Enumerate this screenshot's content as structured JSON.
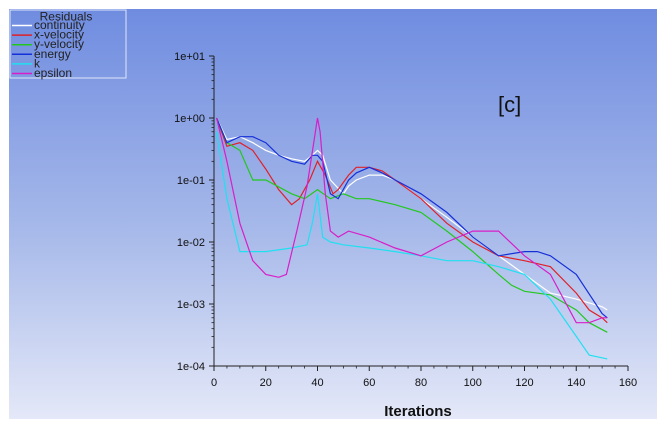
{
  "panel_label": "[c]",
  "legend": {
    "title": "Residuals",
    "items": [
      {
        "label": "continuity",
        "color": "#ffffff"
      },
      {
        "label": "x-velocity",
        "color": "#e0202a"
      },
      {
        "label": "y-velocity",
        "color": "#22c81e"
      },
      {
        "label": "energy",
        "color": "#1630d8"
      },
      {
        "label": "k",
        "color": "#20e0f0"
      },
      {
        "label": "epsilon",
        "color": "#d81ec8"
      }
    ]
  },
  "chart_data": {
    "type": "line",
    "xlabel": "Iterations",
    "ylabel": "",
    "xlim": [
      0,
      160
    ],
    "ylim": [
      0.0001,
      10
    ],
    "yscale": "log",
    "x_ticks": [
      "0",
      "20",
      "40",
      "60",
      "80",
      "100",
      "120",
      "140",
      "160"
    ],
    "y_ticks": [
      "1e-04",
      "1e-03",
      "1e-02",
      "1e-01",
      "1e+00",
      "1e+01"
    ],
    "grid": false,
    "legend_position": "top-left",
    "series": [
      {
        "name": "continuity",
        "color": "#ffffff",
        "points": [
          [
            1,
            1
          ],
          [
            5,
            0.45
          ],
          [
            10,
            0.5
          ],
          [
            15,
            0.4
          ],
          [
            20,
            0.3
          ],
          [
            25,
            0.25
          ],
          [
            30,
            0.22
          ],
          [
            35,
            0.2
          ],
          [
            38,
            0.25
          ],
          [
            40,
            0.3
          ],
          [
            42,
            0.25
          ],
          [
            45,
            0.1
          ],
          [
            50,
            0.06
          ],
          [
            52,
            0.08
          ],
          [
            55,
            0.1
          ],
          [
            60,
            0.12
          ],
          [
            65,
            0.12
          ],
          [
            70,
            0.1
          ],
          [
            80,
            0.05
          ],
          [
            90,
            0.025
          ],
          [
            100,
            0.012
          ],
          [
            110,
            0.006
          ],
          [
            120,
            0.003
          ],
          [
            130,
            0.0015
          ],
          [
            140,
            0.0012
          ],
          [
            150,
            0.0009
          ],
          [
            152,
            0.0008
          ]
        ]
      },
      {
        "name": "x-velocity",
        "color": "#e0202a",
        "points": [
          [
            1,
            1
          ],
          [
            5,
            0.35
          ],
          [
            10,
            0.4
          ],
          [
            15,
            0.3
          ],
          [
            20,
            0.15
          ],
          [
            25,
            0.07
          ],
          [
            30,
            0.04
          ],
          [
            33,
            0.05
          ],
          [
            37,
            0.1
          ],
          [
            40,
            0.2
          ],
          [
            43,
            0.12
          ],
          [
            46,
            0.06
          ],
          [
            48,
            0.07
          ],
          [
            52,
            0.12
          ],
          [
            55,
            0.16
          ],
          [
            60,
            0.16
          ],
          [
            65,
            0.14
          ],
          [
            70,
            0.1
          ],
          [
            80,
            0.05
          ],
          [
            90,
            0.02
          ],
          [
            100,
            0.01
          ],
          [
            110,
            0.006
          ],
          [
            120,
            0.005
          ],
          [
            130,
            0.004
          ],
          [
            140,
            0.0015
          ],
          [
            145,
            0.0008
          ],
          [
            150,
            0.0006
          ],
          [
            152,
            0.0005
          ]
        ]
      },
      {
        "name": "y-velocity",
        "color": "#22c81e",
        "points": [
          [
            1,
            1
          ],
          [
            5,
            0.4
          ],
          [
            10,
            0.3
          ],
          [
            15,
            0.1
          ],
          [
            20,
            0.1
          ],
          [
            30,
            0.06
          ],
          [
            35,
            0.05
          ],
          [
            40,
            0.07
          ],
          [
            45,
            0.05
          ],
          [
            50,
            0.06
          ],
          [
            55,
            0.05
          ],
          [
            60,
            0.05
          ],
          [
            70,
            0.04
          ],
          [
            80,
            0.03
          ],
          [
            90,
            0.015
          ],
          [
            100,
            0.007
          ],
          [
            110,
            0.003
          ],
          [
            115,
            0.002
          ],
          [
            120,
            0.0016
          ],
          [
            130,
            0.0014
          ],
          [
            140,
            0.0008
          ],
          [
            145,
            0.0005
          ],
          [
            152,
            0.00035
          ]
        ]
      },
      {
        "name": "energy",
        "color": "#1630d8",
        "points": [
          [
            1,
            1
          ],
          [
            5,
            0.4
          ],
          [
            10,
            0.5
          ],
          [
            15,
            0.5
          ],
          [
            20,
            0.4
          ],
          [
            25,
            0.25
          ],
          [
            30,
            0.2
          ],
          [
            35,
            0.18
          ],
          [
            38,
            0.25
          ],
          [
            40,
            0.25
          ],
          [
            42,
            0.2
          ],
          [
            45,
            0.06
          ],
          [
            48,
            0.05
          ],
          [
            52,
            0.1
          ],
          [
            55,
            0.13
          ],
          [
            60,
            0.16
          ],
          [
            65,
            0.13
          ],
          [
            70,
            0.1
          ],
          [
            80,
            0.06
          ],
          [
            90,
            0.03
          ],
          [
            100,
            0.012
          ],
          [
            110,
            0.006
          ],
          [
            120,
            0.007
          ],
          [
            125,
            0.007
          ],
          [
            130,
            0.006
          ],
          [
            140,
            0.003
          ],
          [
            150,
            0.0007
          ],
          [
            152,
            0.0006
          ]
        ]
      },
      {
        "name": "k",
        "color": "#20e0f0",
        "points": [
          [
            1,
            0.6
          ],
          [
            5,
            0.05
          ],
          [
            10,
            0.007
          ],
          [
            20,
            0.007
          ],
          [
            30,
            0.008
          ],
          [
            36,
            0.009
          ],
          [
            38,
            0.02
          ],
          [
            40,
            0.06
          ],
          [
            42,
            0.012
          ],
          [
            45,
            0.01
          ],
          [
            50,
            0.009
          ],
          [
            60,
            0.008
          ],
          [
            70,
            0.007
          ],
          [
            80,
            0.006
          ],
          [
            90,
            0.005
          ],
          [
            100,
            0.005
          ],
          [
            110,
            0.004
          ],
          [
            120,
            0.003
          ],
          [
            130,
            0.0012
          ],
          [
            140,
            0.0003
          ],
          [
            145,
            0.00015
          ],
          [
            152,
            0.00013
          ]
        ]
      },
      {
        "name": "epsilon",
        "color": "#d81ec8",
        "points": [
          [
            1,
            1
          ],
          [
            5,
            0.2
          ],
          [
            10,
            0.02
          ],
          [
            15,
            0.005
          ],
          [
            20,
            0.003
          ],
          [
            25,
            0.0027
          ],
          [
            28,
            0.003
          ],
          [
            32,
            0.015
          ],
          [
            36,
            0.08
          ],
          [
            40,
            1
          ],
          [
            41,
            0.6
          ],
          [
            43,
            0.06
          ],
          [
            45,
            0.015
          ],
          [
            48,
            0.012
          ],
          [
            52,
            0.015
          ],
          [
            60,
            0.012
          ],
          [
            70,
            0.008
          ],
          [
            80,
            0.006
          ],
          [
            90,
            0.01
          ],
          [
            100,
            0.015
          ],
          [
            110,
            0.015
          ],
          [
            120,
            0.006
          ],
          [
            130,
            0.003
          ],
          [
            140,
            0.0005
          ],
          [
            145,
            0.0005
          ],
          [
            150,
            0.0006
          ],
          [
            152,
            0.0006
          ]
        ]
      }
    ]
  }
}
